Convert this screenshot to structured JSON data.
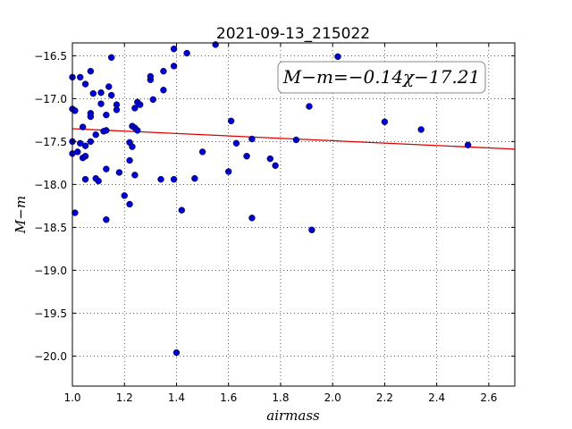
{
  "chart_data": {
    "type": "scatter",
    "title": "2021-09-13_215022",
    "xlabel": "airmass",
    "ylabel": "M−m",
    "xlim": [
      1.0,
      2.7
    ],
    "ylim": [
      -20.35,
      -16.35
    ],
    "y_inverted": true,
    "grid": true,
    "x_ticks": [
      1.0,
      1.2,
      1.4,
      1.6,
      1.8,
      2.0,
      2.2,
      2.4,
      2.6
    ],
    "x_tick_labels": [
      "1.0",
      "1.2",
      "1.4",
      "1.6",
      "1.8",
      "2.0",
      "2.2",
      "2.4",
      "2.6"
    ],
    "y_ticks": [
      -16.5,
      -17.0,
      -17.5,
      -18.0,
      -18.5,
      -19.0,
      -19.5,
      -20.0
    ],
    "y_tick_labels": [
      "−16.5",
      "−17.0",
      "−17.5",
      "−18.0",
      "−18.5",
      "−19.0",
      "−19.5",
      "−20.0"
    ],
    "annotation": "M−m=−0.14χ−17.21",
    "fit": {
      "slope": -0.14,
      "intercept": -17.21,
      "color": "#dd0000"
    },
    "point_color": "#0000cc",
    "points": [
      [
        1.0,
        -16.75
      ],
      [
        1.0,
        -17.12
      ],
      [
        1.01,
        -17.14
      ],
      [
        1.0,
        -17.5
      ],
      [
        1.0,
        -17.64
      ],
      [
        1.02,
        -17.62
      ],
      [
        1.01,
        -18.33
      ],
      [
        1.03,
        -16.75
      ],
      [
        1.03,
        -17.52
      ],
      [
        1.04,
        -17.33
      ],
      [
        1.04,
        -17.69
      ],
      [
        1.05,
        -16.83
      ],
      [
        1.05,
        -17.55
      ],
      [
        1.05,
        -17.67
      ],
      [
        1.05,
        -17.94
      ],
      [
        1.07,
        -16.68
      ],
      [
        1.07,
        -17.17
      ],
      [
        1.07,
        -17.21
      ],
      [
        1.07,
        -17.5
      ],
      [
        1.08,
        -16.94
      ],
      [
        1.09,
        -17.42
      ],
      [
        1.09,
        -17.93
      ],
      [
        1.1,
        -17.96
      ],
      [
        1.11,
        -17.06
      ],
      [
        1.11,
        -16.93
      ],
      [
        1.12,
        -17.38
      ],
      [
        1.13,
        -17.37
      ],
      [
        1.13,
        -17.19
      ],
      [
        1.13,
        -17.82
      ],
      [
        1.13,
        -18.41
      ],
      [
        1.14,
        -16.86
      ],
      [
        1.15,
        -16.52
      ],
      [
        1.15,
        -16.96
      ],
      [
        1.17,
        -17.13
      ],
      [
        1.17,
        -17.07
      ],
      [
        1.18,
        -17.86
      ],
      [
        1.2,
        -18.13
      ],
      [
        1.22,
        -17.51
      ],
      [
        1.22,
        -17.72
      ],
      [
        1.22,
        -18.23
      ],
      [
        1.23,
        -17.32
      ],
      [
        1.23,
        -17.56
      ],
      [
        1.24,
        -17.11
      ],
      [
        1.24,
        -17.34
      ],
      [
        1.25,
        -17.37
      ],
      [
        1.25,
        -17.04
      ],
      [
        1.24,
        -17.89
      ],
      [
        1.26,
        -17.07
      ],
      [
        1.3,
        -16.78
      ],
      [
        1.3,
        -16.74
      ],
      [
        1.31,
        -17.01
      ],
      [
        1.34,
        -17.94
      ],
      [
        1.35,
        -16.68
      ],
      [
        1.35,
        -16.9
      ],
      [
        1.39,
        -16.42
      ],
      [
        1.39,
        -16.62
      ],
      [
        1.39,
        -17.94
      ],
      [
        1.4,
        -19.96
      ],
      [
        1.42,
        -18.3
      ],
      [
        1.44,
        -16.47
      ],
      [
        1.47,
        -17.93
      ],
      [
        1.5,
        -17.62
      ],
      [
        1.55,
        -16.37
      ],
      [
        1.6,
        -17.85
      ],
      [
        1.61,
        -17.26
      ],
      [
        1.63,
        -17.52
      ],
      [
        1.67,
        -17.67
      ],
      [
        1.69,
        -17.47
      ],
      [
        1.69,
        -18.39
      ],
      [
        1.76,
        -17.7
      ],
      [
        1.78,
        -17.78
      ],
      [
        1.86,
        -17.48
      ],
      [
        1.91,
        -17.09
      ],
      [
        1.92,
        -18.53
      ],
      [
        2.02,
        -16.51
      ],
      [
        2.2,
        -17.27
      ],
      [
        2.34,
        -17.36
      ],
      [
        2.52,
        -17.54
      ]
    ]
  }
}
